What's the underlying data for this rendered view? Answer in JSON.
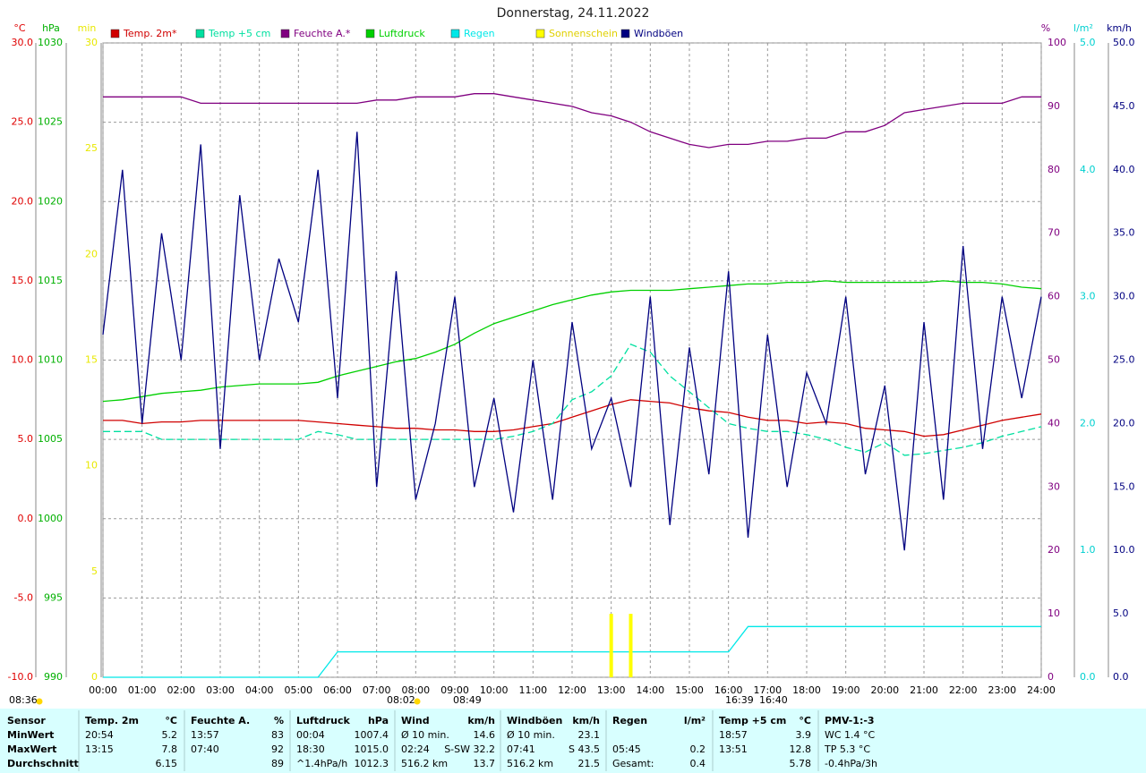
{
  "chart_data": {
    "type": "line",
    "title": "Donnerstag, 24.11.2022",
    "x": [
      0,
      0.5,
      1,
      1.5,
      2,
      2.5,
      3,
      3.5,
      4,
      4.5,
      5,
      5.5,
      6,
      6.5,
      7,
      7.5,
      8,
      8.5,
      9,
      9.5,
      10,
      10.5,
      11,
      11.5,
      12,
      12.5,
      13,
      13.5,
      14,
      14.5,
      15,
      15.5,
      16,
      16.5,
      17,
      17.5,
      18,
      18.5,
      19,
      19.5,
      20,
      20.5,
      21,
      21.5,
      22,
      22.5,
      23,
      23.5,
      24
    ],
    "xlim": [
      0,
      24
    ],
    "xticks": [
      {
        "value": 0,
        "label": "00:00"
      },
      {
        "value": 1,
        "label": "01:00"
      },
      {
        "value": 2,
        "label": "02:00"
      },
      {
        "value": 3,
        "label": "03:00"
      },
      {
        "value": 4,
        "label": "04:00"
      },
      {
        "value": 5,
        "label": "05:00"
      },
      {
        "value": 6,
        "label": "06:00"
      },
      {
        "value": 7,
        "label": "07:00"
      },
      {
        "value": 8,
        "label": "08:00"
      },
      {
        "value": 9,
        "label": "09:00"
      },
      {
        "value": 10,
        "label": "10:00"
      },
      {
        "value": 11,
        "label": "11:00"
      },
      {
        "value": 12,
        "label": "12:00"
      },
      {
        "value": 13,
        "label": "13:00"
      },
      {
        "value": 14,
        "label": "14:00"
      },
      {
        "value": 15,
        "label": "15:00"
      },
      {
        "value": 16,
        "label": "16:00"
      },
      {
        "value": 17,
        "label": "17:00"
      },
      {
        "value": 18,
        "label": "18:00"
      },
      {
        "value": 19,
        "label": "19:00"
      },
      {
        "value": 20,
        "label": "20:00"
      },
      {
        "value": 21,
        "label": "21:00"
      },
      {
        "value": 22,
        "label": "22:00"
      },
      {
        "value": 23,
        "label": "23:00"
      },
      {
        "value": 24,
        "label": "24:00"
      }
    ],
    "grid": true,
    "axes": [
      {
        "id": "y",
        "label": "°C",
        "color": "#e00000",
        "lim": [
          -10,
          30
        ],
        "ticks": [
          {
            "value": -10,
            "label": "-10.0"
          },
          {
            "value": -5,
            "label": "-5.0"
          },
          {
            "value": 0,
            "label": "0.0"
          },
          {
            "value": 5,
            "label": "5.0"
          },
          {
            "value": 10,
            "label": "10.0"
          },
          {
            "value": 15,
            "label": "15.0"
          },
          {
            "value": 20,
            "label": "20.0"
          },
          {
            "value": 25,
            "label": "25.0"
          },
          {
            "value": 30,
            "label": "30.0"
          }
        ]
      },
      {
        "id": "y2",
        "label": "hPa",
        "color": "#00b000",
        "lim": [
          990,
          1030
        ],
        "ticks": [
          990,
          995,
          1000,
          1005,
          1010,
          1015,
          1020,
          1025,
          1030
        ]
      },
      {
        "id": "y3",
        "label": "min",
        "color": "#e8e800",
        "lim": [
          0,
          30
        ],
        "ticks": [
          0,
          5,
          10,
          15,
          20,
          25,
          30
        ]
      },
      {
        "id": "y4",
        "label": "%",
        "color": "#800080",
        "lim": [
          0,
          100
        ],
        "ticks": [
          0,
          10,
          20,
          30,
          40,
          50,
          60,
          70,
          80,
          90,
          100
        ]
      },
      {
        "id": "y5",
        "label": "l/m²",
        "color": "#00d0d0",
        "lim": [
          0,
          5
        ],
        "ticks": [
          {
            "value": 0,
            "label": "0.0"
          },
          {
            "value": 1,
            "label": "1.0"
          },
          {
            "value": 2,
            "label": "2.0"
          },
          {
            "value": 3,
            "label": "3.0"
          },
          {
            "value": 4,
            "label": "4.0"
          },
          {
            "value": 5,
            "label": "5.0"
          }
        ]
      },
      {
        "id": "y6",
        "label": "km/h",
        "color": "#000080",
        "lim": [
          0,
          50
        ],
        "ticks": [
          {
            "value": 0,
            "label": "0.0"
          },
          {
            "value": 5,
            "label": "5.0"
          },
          {
            "value": 10,
            "label": "10.0"
          },
          {
            "value": 15,
            "label": "15.0"
          },
          {
            "value": 20,
            "label": "20.0"
          },
          {
            "value": 25,
            "label": "25.0"
          },
          {
            "value": 30,
            "label": "30.0"
          },
          {
            "value": 35,
            "label": "35.0"
          },
          {
            "value": 40,
            "label": "40.0"
          },
          {
            "value": 45,
            "label": "45.0"
          },
          {
            "value": 50,
            "label": "50.0"
          }
        ]
      }
    ],
    "series": [
      {
        "name": "Temp. 2m*",
        "color": "#d00000",
        "axis": "y",
        "values": [
          6.2,
          6.2,
          6.0,
          6.1,
          6.1,
          6.2,
          6.2,
          6.2,
          6.2,
          6.2,
          6.2,
          6.1,
          6.0,
          5.9,
          5.8,
          5.7,
          5.7,
          5.6,
          5.6,
          5.5,
          5.5,
          5.6,
          5.8,
          6.0,
          6.4,
          6.8,
          7.2,
          7.5,
          7.4,
          7.3,
          7.0,
          6.8,
          6.7,
          6.4,
          6.2,
          6.2,
          6.0,
          6.1,
          6.0,
          5.7,
          5.6,
          5.5,
          5.2,
          5.3,
          5.6,
          5.9,
          6.2,
          6.4,
          6.6
        ]
      },
      {
        "name": "Temp +5 cm",
        "color": "#00e0a0",
        "axis": "y",
        "values": [
          5.5,
          5.5,
          5.5,
          5.0,
          5.0,
          5.0,
          5.0,
          5.0,
          5.0,
          5.0,
          5.0,
          5.5,
          5.3,
          5.0,
          5.0,
          5.0,
          5.0,
          5.0,
          5.0,
          5.0,
          5.0,
          5.2,
          5.5,
          6.0,
          7.5,
          8.0,
          9.0,
          11.0,
          10.5,
          9.0,
          8.0,
          7.0,
          6.0,
          5.7,
          5.5,
          5.5,
          5.3,
          5.0,
          4.5,
          4.2,
          4.8,
          4.0,
          4.1,
          4.3,
          4.5,
          4.8,
          5.2,
          5.5,
          5.8
        ]
      },
      {
        "name": "Feuchte A.*",
        "color": "#800080",
        "axis": "y4",
        "values": [
          91.5,
          91.5,
          91.5,
          91.5,
          91.5,
          90.5,
          90.5,
          90.5,
          90.5,
          90.5,
          90.5,
          90.5,
          90.5,
          90.5,
          91,
          91,
          91.5,
          91.5,
          91.5,
          92,
          92,
          91.5,
          91,
          90.5,
          90,
          89,
          88.5,
          87.5,
          86,
          85,
          84,
          83.5,
          84,
          84,
          84.5,
          84.5,
          85,
          85,
          86,
          86,
          87,
          89,
          89.5,
          90,
          90.5,
          90.5,
          90.5,
          91.5,
          91.5
        ]
      },
      {
        "name": "Luftdruck",
        "color": "#00d000",
        "axis": "y2",
        "values": [
          1007.4,
          1007.5,
          1007.7,
          1007.9,
          1008.0,
          1008.1,
          1008.3,
          1008.4,
          1008.5,
          1008.5,
          1008.5,
          1008.6,
          1009.0,
          1009.3,
          1009.6,
          1009.9,
          1010.1,
          1010.5,
          1011.0,
          1011.7,
          1012.3,
          1012.7,
          1013.1,
          1013.5,
          1013.8,
          1014.1,
          1014.3,
          1014.4,
          1014.4,
          1014.4,
          1014.5,
          1014.6,
          1014.7,
          1014.8,
          1014.8,
          1014.9,
          1014.9,
          1015.0,
          1014.9,
          1014.9,
          1014.9,
          1014.9,
          1014.9,
          1015.0,
          1014.9,
          1014.9,
          1014.8,
          1014.6,
          1014.5
        ]
      },
      {
        "name": "Regen",
        "color": "#00e8e8",
        "axis": "y5",
        "values": [
          0,
          0,
          0,
          0,
          0,
          0,
          0,
          0,
          0,
          0,
          0,
          0,
          0.2,
          0.2,
          0.2,
          0.2,
          0.2,
          0.2,
          0.2,
          0.2,
          0.2,
          0.2,
          0.2,
          0.2,
          0.2,
          0.2,
          0.2,
          0.2,
          0.2,
          0.2,
          0.2,
          0.2,
          0.2,
          0.4,
          0.4,
          0.4,
          0.4,
          0.4,
          0.4,
          0.4,
          0.4,
          0.4,
          0.4,
          0.4,
          0.4,
          0.4,
          0.4,
          0.4,
          0.4
        ]
      },
      {
        "name": "Sonnenschein",
        "color": "#ffff00",
        "axis": "y3",
        "bars": true,
        "values": [
          0,
          0,
          0,
          0,
          0,
          0,
          0,
          0,
          0,
          0,
          0,
          0,
          0,
          0,
          0,
          0,
          0,
          0,
          0,
          0,
          0,
          0,
          0,
          0,
          0,
          0,
          3,
          3,
          0,
          0,
          0,
          0,
          0,
          0,
          0,
          0,
          0,
          0,
          0,
          0,
          0,
          0,
          0,
          0,
          0,
          0,
          0,
          0,
          0
        ]
      },
      {
        "name": "Windböen",
        "color": "#000080",
        "axis": "y6",
        "values": [
          27,
          40,
          20,
          35,
          25,
          42,
          18,
          38,
          25,
          33,
          28,
          40,
          22,
          43,
          15,
          32,
          14,
          20,
          30,
          15,
          22,
          13,
          25,
          14,
          28,
          18,
          22,
          15,
          30,
          12,
          26,
          16,
          32,
          11,
          27,
          15,
          24,
          20,
          30,
          16,
          23,
          10,
          28,
          14,
          34,
          18,
          30,
          22,
          30
        ]
      }
    ],
    "annotations": [
      "08:36",
      "08:02",
      "08:49",
      "16:39",
      "16:40"
    ]
  },
  "table": {
    "header": [
      "Sensor",
      "Temp. 2m",
      "°C",
      "Feuchte A.",
      "%",
      "Luftdruck",
      "hPa",
      "Wind",
      "km/h",
      "Windböen",
      "km/h",
      "Regen",
      "l/m²",
      "Temp +5 cm",
      "°C",
      "PMV-1:-3"
    ],
    "rows": [
      [
        "MinWert",
        "20:54",
        "5.2",
        "13:57",
        "83",
        "00:04",
        "1007.4",
        "Ø 10 min.",
        "14.6",
        "Ø 10 min.",
        "23.1",
        null,
        null,
        "18:57",
        "3.9",
        "WC 1.4 °C"
      ],
      [
        "MaxWert",
        "13:15",
        "7.8",
        "07:40",
        "92",
        "18:30",
        "1015.0",
        "02:24",
        "S-SW 32.2",
        "07:41",
        "S 43.5",
        "05:45",
        "0.2",
        "13:51",
        "12.8",
        "TP 5.3 °C"
      ],
      [
        "Durchschnitt",
        null,
        "6.15",
        null,
        "89",
        "^1.4hPa/h",
        "1012.3",
        "516.2 km",
        "13.7",
        "516.2 km",
        "21.5",
        "Gesamt:",
        "0.4",
        null,
        "5.78",
        "-0.4hPa/3h"
      ]
    ]
  }
}
